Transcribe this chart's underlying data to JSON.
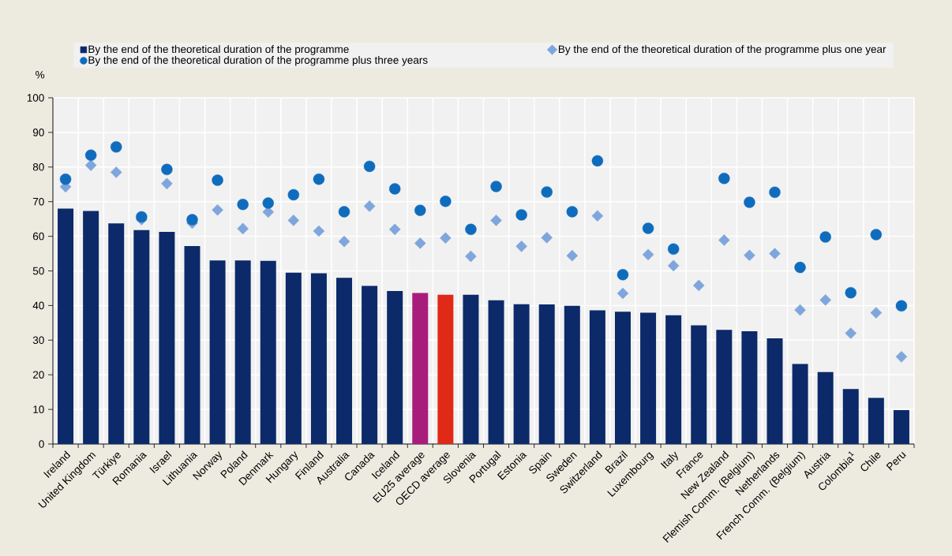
{
  "chart_data": {
    "type": "bar",
    "ylabel": "%",
    "categories": [
      "Ireland",
      "United Kingdom",
      "Türkiye",
      "Romania",
      "Israel",
      "Lithuania",
      "Norway",
      "Poland",
      "Denmark",
      "Hungary",
      "Finland",
      "Australia",
      "Canada",
      "Iceland",
      "EU25 average",
      "OECD average",
      "Slovenia",
      "Portugal",
      "Estonia",
      "Spain",
      "Sweden",
      "Switzerland",
      "Brazil",
      "Luxembourg",
      "Italy",
      "France",
      "New Zealand",
      "Flemish Comm. (Belgium)",
      "Netherlands",
      "French Comm. (Belgium)",
      "Austria",
      "Colombia$^{1}$",
      "Chile",
      "Peru"
    ],
    "series": [
      {
        "name": "By the end of the theoretical duration of the programme",
        "color": "#0c2a6a",
        "colors": [
          "#0c2a6a",
          "#0c2a6a",
          "#0c2a6a",
          "#0c2a6a",
          "#0c2a6a",
          "#0c2a6a",
          "#0c2a6a",
          "#0c2a6a",
          "#0c2a6a",
          "#0c2a6a",
          "#0c2a6a",
          "#0c2a6a",
          "#0c2a6a",
          "#0c2a6a",
          "#a81c7c",
          "#e02a17",
          "#0c2a6a",
          "#0c2a6a",
          "#0c2a6a",
          "#0c2a6a",
          "#0c2a6a",
          "#0c2a6a",
          "#0c2a6a",
          "#0c2a6a",
          "#0c2a6a",
          "#0c2a6a",
          "#0c2a6a",
          "#0c2a6a",
          "#0c2a6a",
          "#0c2a6a",
          "#0c2a6a",
          "#0c2a6a",
          "#0c2a6a",
          "#0c2a6a"
        ],
        "values": [
          68,
          67.3,
          63.7,
          61.8,
          61.3,
          57.2,
          53,
          53,
          52.9,
          49.5,
          49.3,
          48,
          45.7,
          44.2,
          43.6,
          43.1,
          43.1,
          41.5,
          40.4,
          40.3,
          39.9,
          38.6,
          38.2,
          37.9,
          37.2,
          34.3,
          33,
          32.6,
          30.5,
          23.1,
          20.8,
          15.9,
          13.3,
          9.8
        ]
      },
      {
        "name": "By the end of the theoretical duration of the programme plus one year",
        "type": "scatter",
        "marker": "diamond",
        "color": "#7fa6dc",
        "values": [
          74.3,
          80.5,
          78.5,
          64.8,
          75.2,
          63.8,
          67.6,
          62.2,
          67,
          64.6,
          61.5,
          58.5,
          68.7,
          62,
          58,
          59.5,
          54.2,
          64.6,
          57.1,
          59.6,
          54.4,
          65.9,
          43.5,
          54.7,
          51.5,
          45.8,
          58.9,
          54.5,
          55,
          38.7,
          41.6,
          32,
          37.9,
          25.2
        ]
      },
      {
        "name": "By the end of the theoretical duration of the programme plus three years",
        "type": "scatter",
        "marker": "circle",
        "color": "#0f6cbd",
        "values": [
          76.5,
          83.4,
          85.8,
          65.6,
          79.3,
          64.8,
          76.2,
          69.2,
          69.6,
          72,
          76.5,
          67.1,
          80.2,
          73.7,
          67.5,
          70.1,
          62,
          74.4,
          66.2,
          72.8,
          67.1,
          81.8,
          48.9,
          62.3,
          56.3,
          null,
          76.7,
          69.8,
          72.7,
          51,
          59.8,
          43.7,
          60.5,
          39.9
        ]
      }
    ],
    "ylim": [
      0,
      100
    ],
    "yticks": [
      0,
      10,
      20,
      30,
      40,
      50,
      60,
      70,
      80,
      90,
      100
    ],
    "grid": true,
    "legend": "top"
  }
}
